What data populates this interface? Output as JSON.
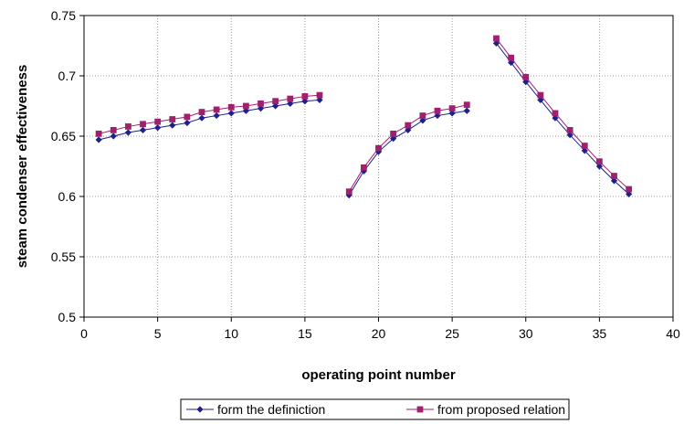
{
  "chart_data": {
    "type": "line",
    "title": "",
    "xlabel": "operating point number",
    "ylabel": "steam condenser effectiveness",
    "xlim": [
      0,
      40
    ],
    "ylim": [
      0.5,
      0.75
    ],
    "xticks": [
      0,
      5,
      10,
      15,
      20,
      25,
      30,
      35,
      40
    ],
    "yticks": [
      0.5,
      0.55,
      0.6,
      0.65,
      0.7,
      0.75
    ],
    "xtick_labels": [
      "0",
      "5",
      "10",
      "15",
      "20",
      "25",
      "30",
      "35",
      "40"
    ],
    "ytick_labels": [
      "0.5",
      "0.55",
      "0.6",
      "0.65",
      "0.7",
      "0.75"
    ],
    "grid": true,
    "legend_position": "bottom",
    "segments": [
      [
        1,
        16
      ],
      [
        18,
        26
      ],
      [
        28,
        37
      ]
    ],
    "series": [
      {
        "name": "form the definiction",
        "color": "#1f1f8f",
        "marker": "diamond",
        "x": [
          1,
          2,
          3,
          4,
          5,
          6,
          7,
          8,
          9,
          10,
          11,
          12,
          13,
          14,
          15,
          16,
          18,
          19,
          20,
          21,
          22,
          23,
          24,
          25,
          26,
          28,
          29,
          30,
          31,
          32,
          33,
          34,
          35,
          36,
          37
        ],
        "y": [
          0.647,
          0.65,
          0.653,
          0.655,
          0.657,
          0.659,
          0.661,
          0.665,
          0.667,
          0.669,
          0.671,
          0.673,
          0.675,
          0.677,
          0.679,
          0.68,
          0.601,
          0.621,
          0.637,
          0.648,
          0.655,
          0.663,
          0.667,
          0.669,
          0.671,
          0.727,
          0.711,
          0.695,
          0.68,
          0.665,
          0.651,
          0.638,
          0.625,
          0.613,
          0.602
        ]
      },
      {
        "name": "from proposed relation",
        "color": "#a0206e",
        "marker": "square",
        "x": [
          1,
          2,
          3,
          4,
          5,
          6,
          7,
          8,
          9,
          10,
          11,
          12,
          13,
          14,
          15,
          16,
          18,
          19,
          20,
          21,
          22,
          23,
          24,
          25,
          26,
          28,
          29,
          30,
          31,
          32,
          33,
          34,
          35,
          36,
          37
        ],
        "y": [
          0.652,
          0.655,
          0.658,
          0.66,
          0.662,
          0.664,
          0.666,
          0.67,
          0.672,
          0.674,
          0.675,
          0.677,
          0.679,
          0.681,
          0.683,
          0.684,
          0.604,
          0.624,
          0.64,
          0.652,
          0.659,
          0.667,
          0.671,
          0.673,
          0.676,
          0.731,
          0.715,
          0.699,
          0.684,
          0.669,
          0.655,
          0.642,
          0.629,
          0.617,
          0.606
        ]
      }
    ]
  }
}
